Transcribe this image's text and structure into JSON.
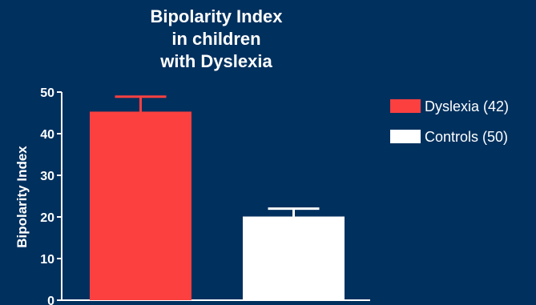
{
  "chart_data": {
    "type": "bar",
    "title_lines": [
      "Bipolarity Index",
      "in children",
      "with Dyslexia"
    ],
    "ylabel": "Bipolarity Index",
    "xlabel": "",
    "ylim": [
      0,
      50
    ],
    "yticks": [
      0,
      10,
      20,
      30,
      40,
      50
    ],
    "categories": [
      "Dyslexia (42)",
      "Controls (50)"
    ],
    "values": [
      45.3,
      20.1
    ],
    "errors": [
      3.6,
      1.9
    ],
    "colors": [
      "#fc4040",
      "#ffffff"
    ],
    "legend": {
      "placement": "top-right",
      "entries": [
        "Dyslexia (42)",
        "Controls (50)"
      ]
    }
  },
  "theme": {
    "background": "#00305e",
    "axis_color": "#ffffff"
  }
}
